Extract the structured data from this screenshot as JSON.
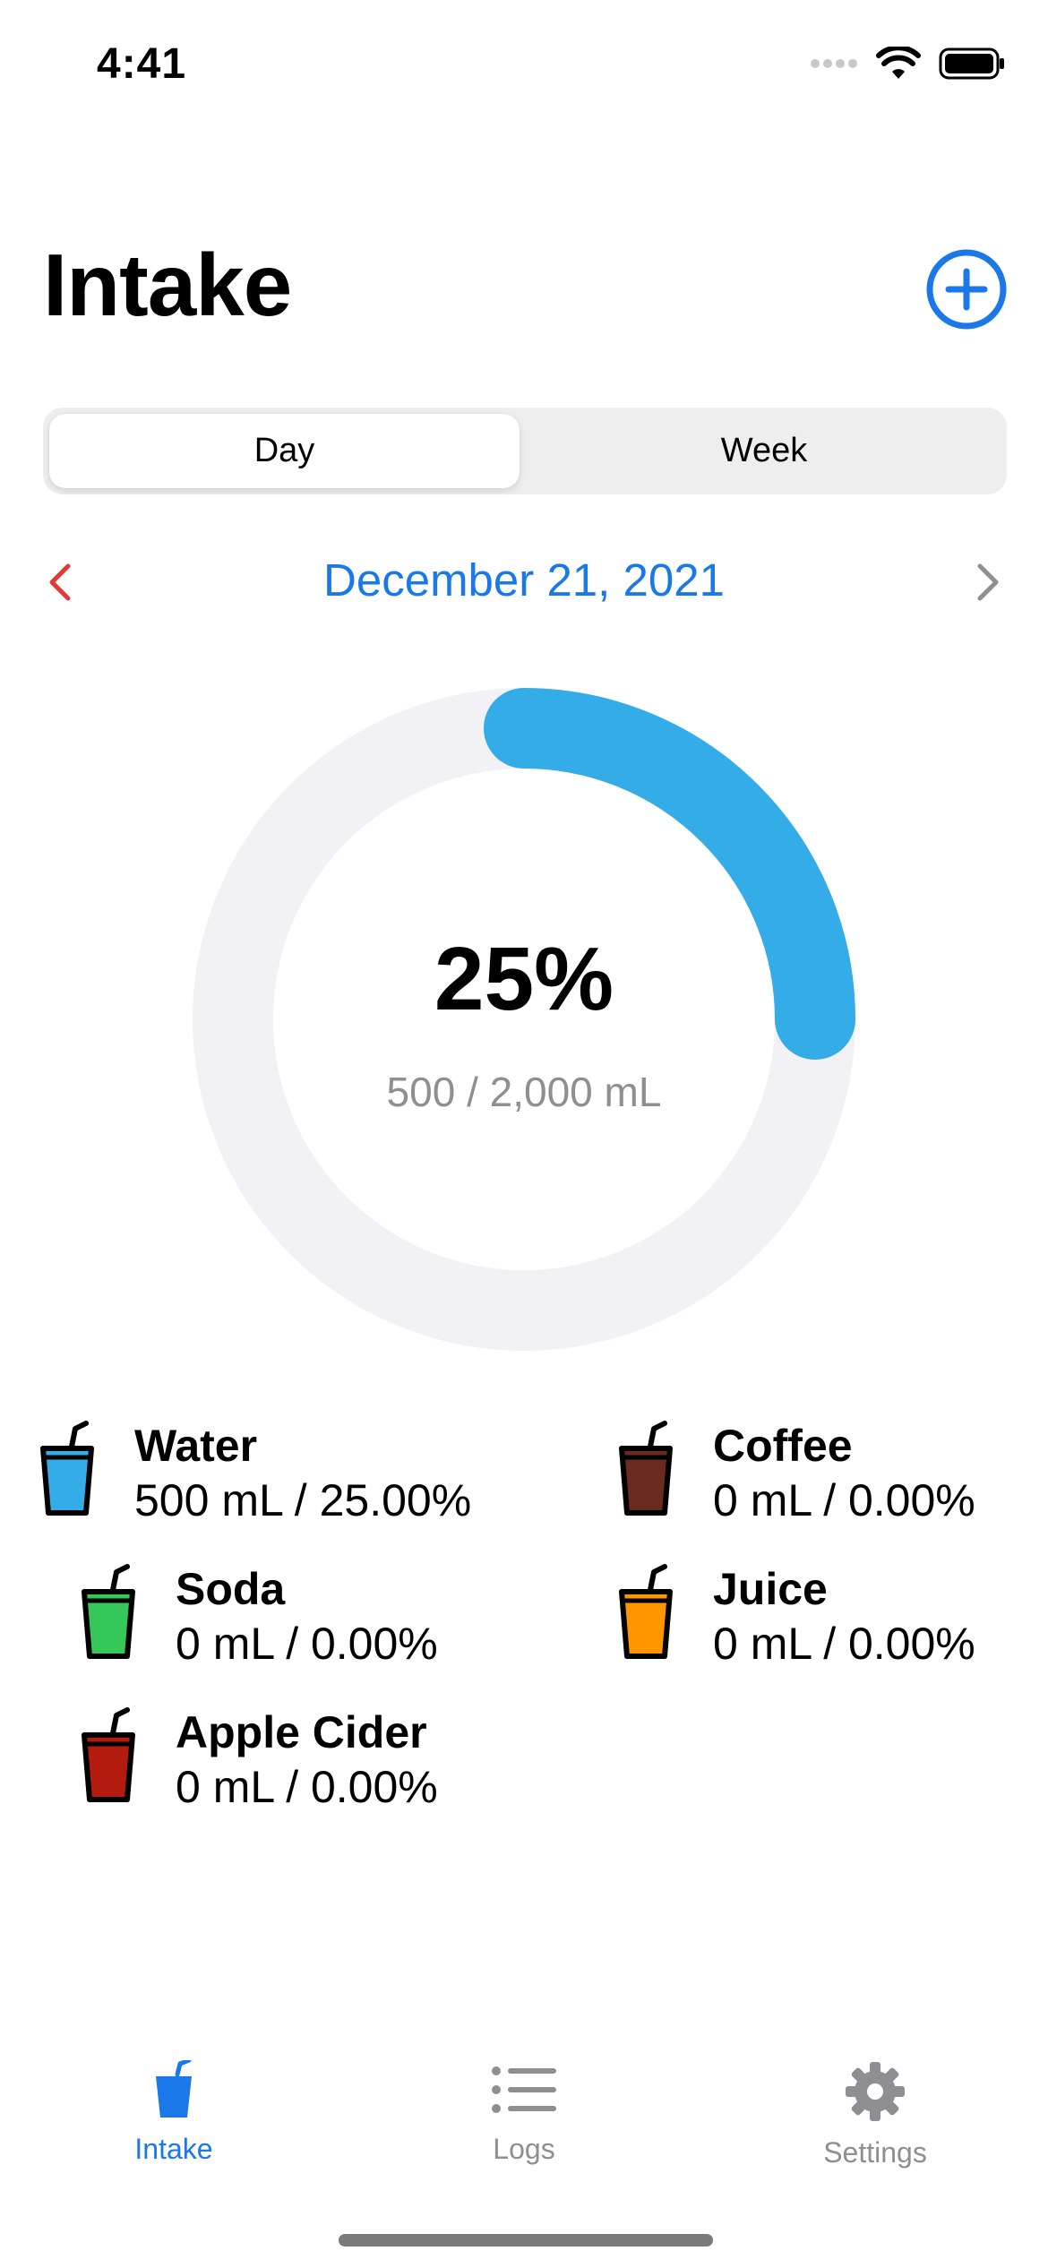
{
  "status_bar": {
    "time": "4:41"
  },
  "header": {
    "title": "Intake"
  },
  "segmented": {
    "day": "Day",
    "week": "Week",
    "selected": "Day"
  },
  "date_nav": {
    "date": "December 21, 2021"
  },
  "progress": {
    "percent_label": "25%",
    "amount_label": "500 / 2,000 mL",
    "fraction": 0.25
  },
  "legend": [
    {
      "name": "Water",
      "value": "500 mL / 25.00%",
      "color": "#34ace8"
    },
    {
      "name": "Coffee",
      "value": "0 mL / 0.00%",
      "color": "#6b2a1e"
    },
    {
      "name": "Soda",
      "value": "0 mL / 0.00%",
      "color": "#35c759"
    },
    {
      "name": "Juice",
      "value": "0 mL / 0.00%",
      "color": "#ff9500"
    },
    {
      "name": "Apple Cider",
      "value": "0 mL / 0.00%",
      "color": "#b31b0e"
    }
  ],
  "tabs": [
    {
      "label": "Intake",
      "icon": "cup-icon",
      "active": true
    },
    {
      "label": "Logs",
      "icon": "list-icon",
      "active": false
    },
    {
      "label": "Settings",
      "icon": "gear-icon",
      "active": false
    }
  ],
  "colors": {
    "accent": "#1a78e8",
    "ring_fill": "#34ace8",
    "ring_track": "#f2f2f6",
    "prev_chevron": "#e53935",
    "inactive": "#8e8e93"
  }
}
